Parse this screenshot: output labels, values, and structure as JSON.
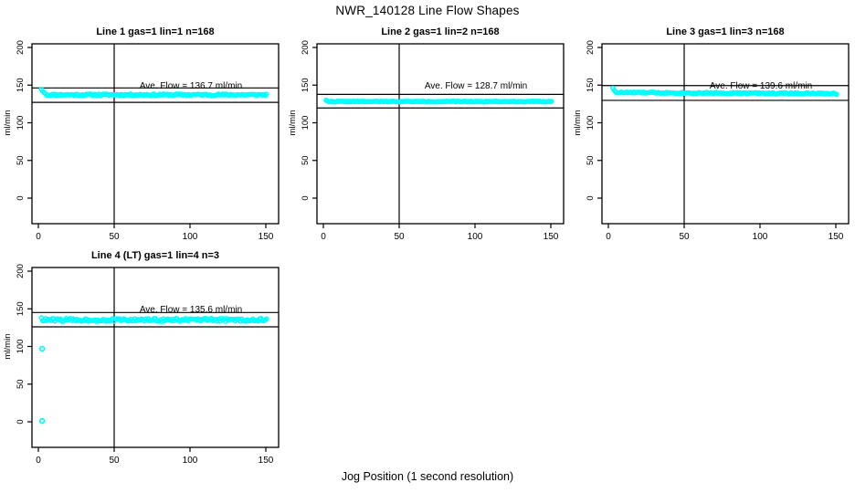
{
  "page": {
    "title": "NWR_140128  Line Flow Shapes",
    "xlabel": "Jog Position (1 second resolution)",
    "background": "#ffffff"
  },
  "style": {
    "point_color": "#00FFFF",
    "line_color": "#000000",
    "text_color": "#000000"
  },
  "chart_data": [
    {
      "type": "scatter",
      "title": "Line 1 gas=1 lin=1 n=168",
      "annotation": "Ave. Flow =  136.7  ml/min",
      "ave_flow": 136.7,
      "n": 168,
      "ylabel": "ml/min",
      "x_ticks": [
        0,
        50,
        100,
        150
      ],
      "y_ticks": [
        0,
        50,
        100,
        150,
        200
      ],
      "xlim": [
        0,
        150
      ],
      "ylim": [
        0,
        200
      ],
      "vline_x": 50,
      "hlines": [
        146.3,
        127.1
      ],
      "band": {
        "x_start": 2,
        "x_end": 150.5,
        "n_points": 165,
        "mean": 137.2,
        "trend": 0,
        "jitter": 1.1,
        "lead_in": [
          144.5,
          142,
          140,
          138.5
        ]
      },
      "outliers": [],
      "seed": 11
    },
    {
      "type": "scatter",
      "title": "Line 2 gas=1 lin=2 n=168",
      "annotation": "Ave. Flow =  128.7  ml/min",
      "ave_flow": 128.7,
      "n": 168,
      "ylabel": "ml/min",
      "x_ticks": [
        0,
        50,
        100,
        150
      ],
      "y_ticks": [
        0,
        50,
        100,
        150,
        200
      ],
      "xlim": [
        0,
        150
      ],
      "ylim": [
        0,
        200
      ],
      "vline_x": 50,
      "hlines": [
        137.7,
        119.7
      ],
      "band": {
        "x_start": 1.8,
        "x_end": 150.5,
        "n_points": 166,
        "mean": 128.2,
        "trend": 0,
        "jitter": 0.55,
        "lead_in": [
          130,
          129
        ]
      },
      "outliers": [],
      "seed": 22
    },
    {
      "type": "scatter",
      "title": "Line 3 gas=1 lin=3 n=168",
      "annotation": "Ave. Flow =  139.6  ml/min",
      "ave_flow": 139.6,
      "n": 168,
      "ylabel": "ml/min",
      "x_ticks": [
        0,
        50,
        100,
        150
      ],
      "y_ticks": [
        0,
        50,
        100,
        150,
        200
      ],
      "xlim": [
        0,
        150
      ],
      "ylim": [
        0,
        200
      ],
      "vline_x": 50,
      "hlines": [
        149.4,
        129.8
      ],
      "band": {
        "x_start": 3,
        "x_end": 150.5,
        "n_points": 163,
        "mean": 140.2,
        "trend": -1.5,
        "jitter": 0.9,
        "lead_in": [
          146,
          143,
          141
        ]
      },
      "outliers": [],
      "seed": 33
    },
    {
      "type": "scatter",
      "title": "Line 4 (LT) gas=1 lin=4 n=3",
      "annotation": "Ave. Flow =  135.6  ml/min",
      "ave_flow": 135.6,
      "n": 3,
      "ylabel": "ml/min",
      "x_ticks": [
        0,
        50,
        100,
        150
      ],
      "y_ticks": [
        0,
        50,
        100,
        150,
        200
      ],
      "xlim": [
        0,
        150
      ],
      "ylim": [
        0,
        200
      ],
      "vline_x": 50,
      "hlines": [
        145.1,
        126.1
      ],
      "band": {
        "x_start": 2,
        "x_end": 150.5,
        "n_points": 165,
        "mean": 135.2,
        "trend": 0,
        "jitter": 2.0,
        "lead_in": [
          138
        ]
      },
      "outliers": [
        {
          "x": 2.5,
          "y": 97
        },
        {
          "x": 2.5,
          "y": 1
        }
      ],
      "seed": 44
    }
  ]
}
